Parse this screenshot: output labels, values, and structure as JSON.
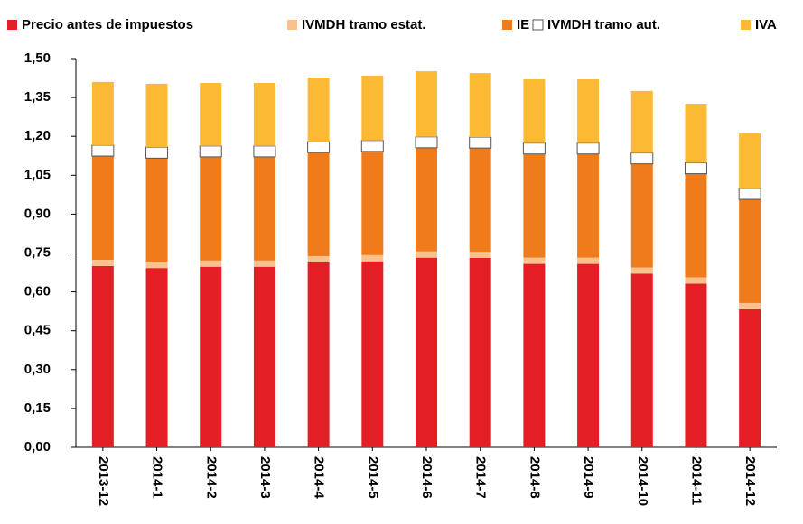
{
  "chart_data": {
    "type": "stacked_bar",
    "categories": [
      "2013-12",
      "2014-1",
      "2014-2",
      "2014-3",
      "2014-4",
      "2014-5",
      "2014-6",
      "2014-7",
      "2014-8",
      "2014-9",
      "2014-10",
      "2014-11",
      "2014-12"
    ],
    "series": [
      {
        "name": "Precio antes de impuestos",
        "color": "#e31e24",
        "values": [
          0.7,
          0.692,
          0.697,
          0.697,
          0.714,
          0.718,
          0.732,
          0.731,
          0.708,
          0.708,
          0.67,
          0.632,
          0.533
        ]
      },
      {
        "name": "IVMDH tramo estat.",
        "color": "#f9c28c",
        "values": [
          0.024,
          0.024,
          0.024,
          0.024,
          0.024,
          0.024,
          0.024,
          0.024,
          0.024,
          0.024,
          0.024,
          0.024,
          0.024
        ]
      },
      {
        "name": "IE",
        "color": "#ef7b1a",
        "values": [
          0.4,
          0.4,
          0.4,
          0.4,
          0.4,
          0.4,
          0.4,
          0.4,
          0.4,
          0.4,
          0.4,
          0.4,
          0.4
        ]
      },
      {
        "name": "IVMDH tramo aut.",
        "color": "#ffffff",
        "values": [
          0.042,
          0.042,
          0.042,
          0.042,
          0.042,
          0.042,
          0.042,
          0.042,
          0.042,
          0.042,
          0.042,
          0.042,
          0.042
        ]
      },
      {
        "name": "IVA",
        "color": "#fbb934",
        "values": [
          0.244,
          0.245,
          0.243,
          0.243,
          0.247,
          0.25,
          0.253,
          0.247,
          0.246,
          0.246,
          0.239,
          0.228,
          0.212
        ]
      }
    ],
    "ylim": [
      0,
      1.5
    ],
    "yticks": [
      {
        "value": 0,
        "label": "0,00"
      },
      {
        "value": 0.15,
        "label": "0,15"
      },
      {
        "value": 0.3,
        "label": "0,30"
      },
      {
        "value": 0.45,
        "label": "0,45"
      },
      {
        "value": 0.6,
        "label": "0,60"
      },
      {
        "value": 0.75,
        "label": "0,75"
      },
      {
        "value": 0.9,
        "label": "0,90"
      },
      {
        "value": 1.05,
        "label": "1,05"
      },
      {
        "value": 1.2,
        "label": "1,20"
      },
      {
        "value": 1.35,
        "label": "1,35"
      },
      {
        "value": 1.5,
        "label": "1,50"
      }
    ],
    "legend": "top"
  }
}
